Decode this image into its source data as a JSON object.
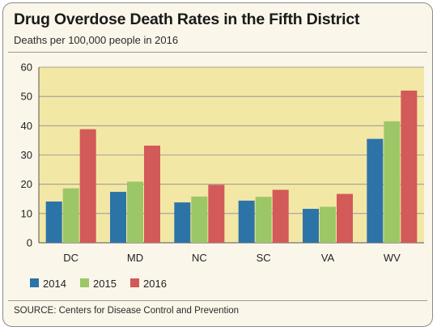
{
  "chart_data": {
    "type": "bar",
    "title": "Drug Overdose Death Rates in the Fifth District",
    "subtitle": "Deaths per 100,000 people in 2016",
    "categories": [
      "DC",
      "MD",
      "NC",
      "SC",
      "VA",
      "WV"
    ],
    "series": [
      {
        "name": "2014",
        "color": "#2c74a8",
        "values": [
          14.1,
          17.4,
          13.8,
          14.4,
          11.6,
          35.5
        ]
      },
      {
        "name": "2015",
        "color": "#9cc766",
        "values": [
          18.6,
          20.9,
          15.8,
          15.7,
          12.3,
          41.5
        ]
      },
      {
        "name": "2016",
        "color": "#d25a58",
        "values": [
          38.8,
          33.2,
          19.8,
          18.1,
          16.7,
          52.0
        ]
      }
    ],
    "ylim": [
      0,
      60
    ],
    "yticks": [
      0,
      10,
      20,
      30,
      40,
      50,
      60
    ],
    "grid": true,
    "legend_position": "bottom-left",
    "plot_background": "#f3e7a6",
    "card_background": "#fbf6ea"
  },
  "source": {
    "label": "SOURCE:",
    "text": "Centers for Disease Control and Prevention"
  }
}
